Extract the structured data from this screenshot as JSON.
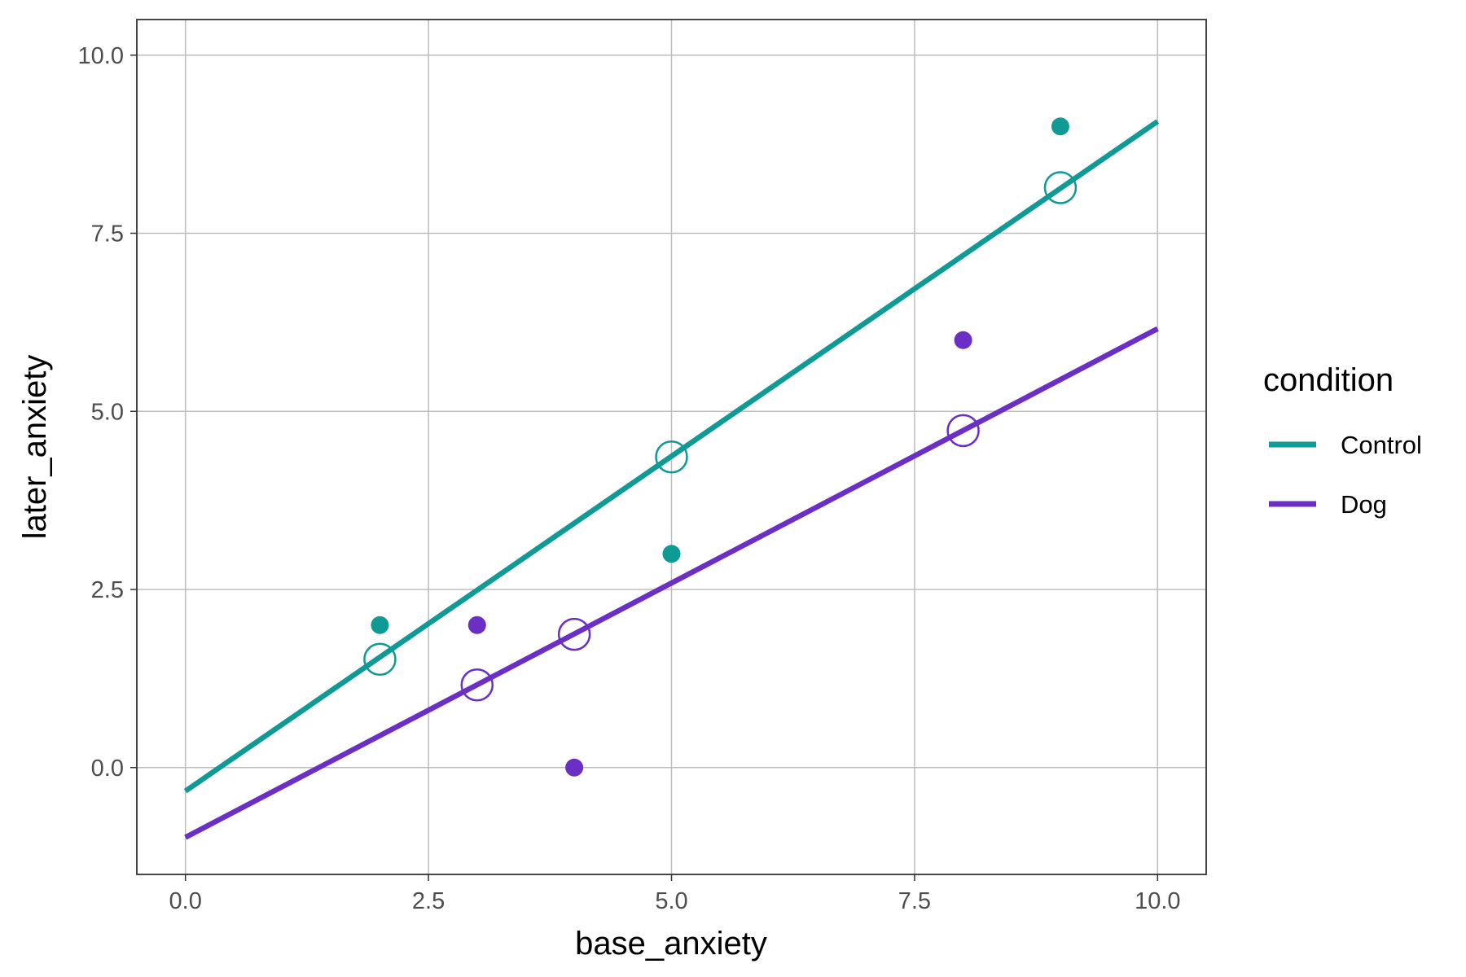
{
  "chart_data": {
    "type": "scatter",
    "xlabel": "base_anxiety",
    "ylabel": "later_anxiety",
    "xlim": [
      -0.5,
      10.5
    ],
    "ylim": [
      -1.5,
      10.5
    ],
    "x_ticks": [
      0,
      2.5,
      5,
      7.5,
      10
    ],
    "y_ticks": [
      0,
      2.5,
      5,
      7.5,
      10
    ],
    "x_tick_labels": [
      "0.0",
      "2.5",
      "5.0",
      "7.5",
      "10.0"
    ],
    "y_tick_labels": [
      "0.0",
      "2.5",
      "5.0",
      "7.5",
      "10.0"
    ],
    "grid": true,
    "legend": {
      "title": "condition",
      "position": "right",
      "entries": [
        "Control",
        "Dog"
      ]
    },
    "series": [
      {
        "name": "Control",
        "color": "#0f9a96",
        "observed": [
          {
            "x": 2,
            "y": 2
          },
          {
            "x": 5,
            "y": 3
          },
          {
            "x": 9,
            "y": 9
          }
        ],
        "fitted": [
          {
            "x": 2,
            "y": 1.52
          },
          {
            "x": 5,
            "y": 4.36
          },
          {
            "x": 9,
            "y": 8.14
          }
        ],
        "fit_line": [
          {
            "x": 0,
            "y": -0.33
          },
          {
            "x": 10,
            "y": 9.07
          }
        ]
      },
      {
        "name": "Dog",
        "color": "#6b2fc6",
        "observed": [
          {
            "x": 3,
            "y": 2
          },
          {
            "x": 4,
            "y": 0
          },
          {
            "x": 8,
            "y": 6
          }
        ],
        "fitted": [
          {
            "x": 3,
            "y": 1.16
          },
          {
            "x": 4,
            "y": 1.87
          },
          {
            "x": 8,
            "y": 4.73
          }
        ],
        "fit_line": [
          {
            "x": 0,
            "y": -0.98
          },
          {
            "x": 10,
            "y": 6.16
          }
        ]
      }
    ]
  }
}
